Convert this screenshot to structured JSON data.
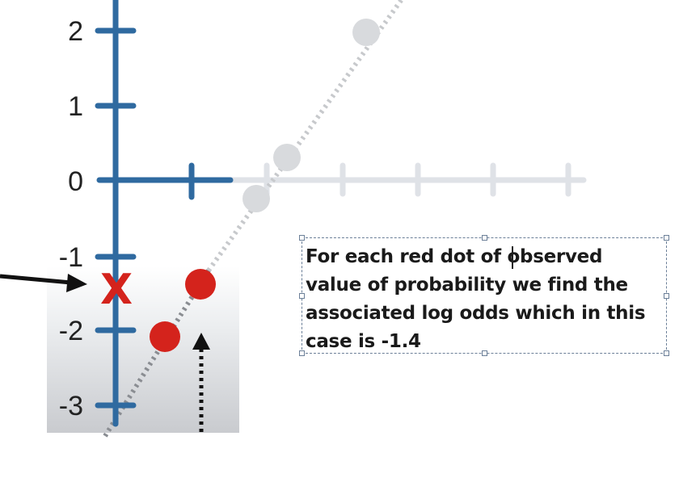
{
  "plot": {
    "y_ticks": [
      "2",
      "1",
      "0",
      "-1",
      "-2",
      "-3"
    ],
    "marker_label": "X",
    "colors": {
      "axis": "#2f6aa0",
      "faded_axis": "#dfe2e7",
      "faded_points": "#d8dadd",
      "red_dots": "#d4231c",
      "marker": "#d4231c",
      "line": "#c7c9cc"
    }
  },
  "annotation": {
    "text": "For each red dot of observed\nvalue of probability we find the\nassociated log odds which in this\ncase is -1.4"
  }
}
